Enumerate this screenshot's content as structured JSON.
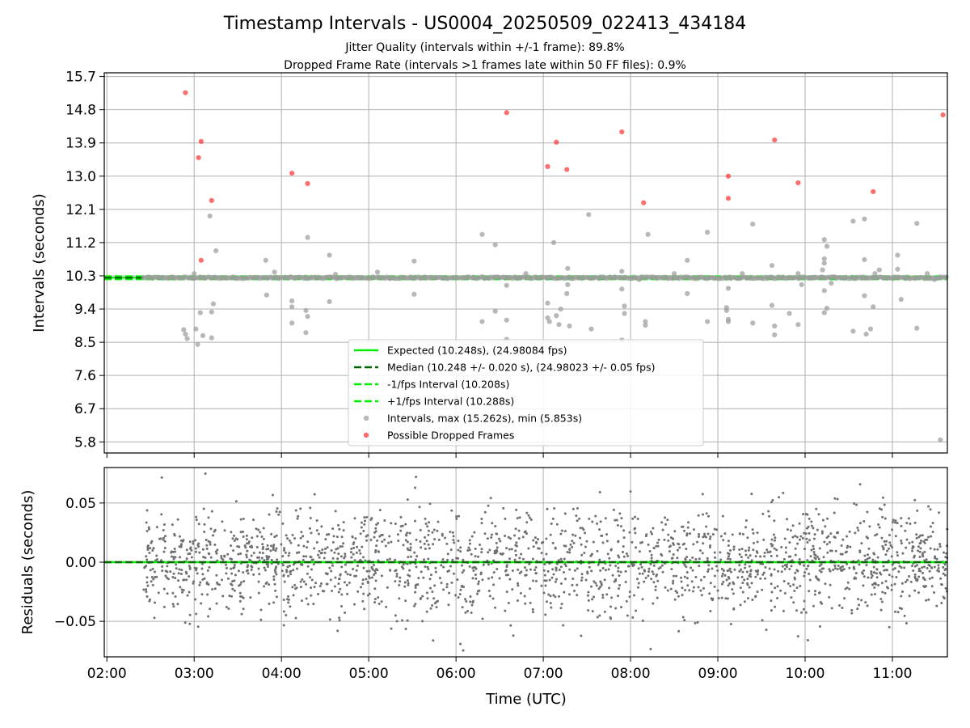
{
  "figure": {
    "title": "Timestamp Intervals - US0004_20250509_022413_434184",
    "subtitle_1": "Jitter Quality (intervals within +/-1 frame): 89.8%",
    "subtitle_2": "Dropped Frame Rate (intervals >1 frames late within 50 FF files): 0.9%"
  },
  "colors": {
    "expected": "#00ee00",
    "median": "#006400",
    "band": "#00ee00",
    "intervals": "#a0a0a0",
    "dropped": "#ff3030",
    "residuals": "#707070",
    "grid": "#b0b0b0"
  },
  "chart_data": [
    {
      "type": "scatter",
      "panel": "intervals",
      "xlabel": "",
      "ylabel": "Intervals (seconds)",
      "x_unit": "hours UTC",
      "xlim": [
        1.97,
        11.63
      ],
      "ylim": [
        5.5,
        15.8
      ],
      "yticks": [
        5.8,
        6.7,
        7.6,
        8.5,
        9.4,
        10.3,
        11.2,
        12.1,
        13.0,
        13.9,
        14.8,
        15.7
      ],
      "ytick_labels": [
        "5.8",
        "6.7",
        "7.6",
        "8.5",
        "9.4",
        "10.3",
        "11.2",
        "12.1",
        "13.0",
        "13.9",
        "14.8",
        "15.7"
      ],
      "xticks": [
        2,
        3,
        4,
        5,
        6,
        7,
        8,
        9,
        10,
        11
      ],
      "grid": true,
      "legend_position": "lower-center",
      "lines": {
        "expected": {
          "name": "Expected (10.248s), (24.98084 fps)",
          "y": 10.248,
          "x_range": [
            1.97,
            11.63
          ]
        },
        "median": {
          "name": "Median (10.248 +/- 0.020 s), (24.98023 +/- 0.05 fps)",
          "y": 10.248,
          "x_range": [
            1.97,
            11.63
          ]
        },
        "minus_band": {
          "name": "-1/fps Interval (10.208s)",
          "y": 10.208,
          "x_range": [
            1.97,
            11.63
          ]
        },
        "plus_band": {
          "name": "+1/fps Interval (10.288s)",
          "y": 10.288,
          "x_range": [
            1.97,
            11.63
          ]
        }
      },
      "normal_cluster": {
        "y": 10.248,
        "x_range": [
          2.42,
          11.63
        ]
      },
      "series": [
        {
          "name": "Intervals, max (15.262s), min (5.853s)",
          "points": [
            [
              2.88,
              8.84
            ],
            [
              2.9,
              8.72
            ],
            [
              2.92,
              8.6
            ],
            [
              3.02,
              8.86
            ],
            [
              3.04,
              8.44
            ],
            [
              3.07,
              9.3
            ],
            [
              3.1,
              8.68
            ],
            [
              3.2,
              8.62
            ],
            [
              3.2,
              9.32
            ],
            [
              3.22,
              9.54
            ],
            [
              3.25,
              10.98
            ],
            [
              3.18,
              11.92
            ],
            [
              3.0,
              10.36
            ],
            [
              3.82,
              10.72
            ],
            [
              3.83,
              9.78
            ],
            [
              3.92,
              10.4
            ],
            [
              4.12,
              9.62
            ],
            [
              4.12,
              9.02
            ],
            [
              4.12,
              9.46
            ],
            [
              4.28,
              8.76
            ],
            [
              4.28,
              9.36
            ],
            [
              4.3,
              9.2
            ],
            [
              4.3,
              11.34
            ],
            [
              4.55,
              10.86
            ],
            [
              4.55,
              9.6
            ],
            [
              4.1,
              10.26
            ],
            [
              4.62,
              10.34
            ],
            [
              4.88,
              10.26
            ],
            [
              5.1,
              10.4
            ],
            [
              5.52,
              10.7
            ],
            [
              5.52,
              9.8
            ],
            [
              6.3,
              11.42
            ],
            [
              6.45,
              11.14
            ],
            [
              6.3,
              9.06
            ],
            [
              6.45,
              9.34
            ],
            [
              6.58,
              9.1
            ],
            [
              6.58,
              8.58
            ],
            [
              6.58,
              10.04
            ],
            [
              6.8,
              10.36
            ],
            [
              7.05,
              9.56
            ],
            [
              7.05,
              9.16
            ],
            [
              7.07,
              9.06
            ],
            [
              7.12,
              11.2
            ],
            [
              7.15,
              9.22
            ],
            [
              7.18,
              8.98
            ],
            [
              7.2,
              9.4
            ],
            [
              7.27,
              9.82
            ],
            [
              7.3,
              8.94
            ],
            [
              7.28,
              10.5
            ],
            [
              7.28,
              10.06
            ],
            [
              7.52,
              11.96
            ],
            [
              7.55,
              8.86
            ],
            [
              7.9,
              8.56
            ],
            [
              7.93,
              9.48
            ],
            [
              7.93,
              9.28
            ],
            [
              7.9,
              10.42
            ],
            [
              7.9,
              9.94
            ],
            [
              8.17,
              9.06
            ],
            [
              8.17,
              8.96
            ],
            [
              8.2,
              11.42
            ],
            [
              8.1,
              10.2
            ],
            [
              8.5,
              10.36
            ],
            [
              8.65,
              10.72
            ],
            [
              8.65,
              9.82
            ],
            [
              8.88,
              11.48
            ],
            [
              8.88,
              9.06
            ],
            [
              9.1,
              9.44
            ],
            [
              9.1,
              9.36
            ],
            [
              9.12,
              9.12
            ],
            [
              9.12,
              9.06
            ],
            [
              9.12,
              9.96
            ],
            [
              9.28,
              10.36
            ],
            [
              9.4,
              11.7
            ],
            [
              9.4,
              9.02
            ],
            [
              9.62,
              10.58
            ],
            [
              9.62,
              9.5
            ],
            [
              9.65,
              8.94
            ],
            [
              9.65,
              8.7
            ],
            [
              9.82,
              9.28
            ],
            [
              9.92,
              8.98
            ],
            [
              9.92,
              10.36
            ],
            [
              9.96,
              10.06
            ],
            [
              10.1,
              10.26
            ],
            [
              10.22,
              11.28
            ],
            [
              10.22,
              10.76
            ],
            [
              10.22,
              10.64
            ],
            [
              10.25,
              11.1
            ],
            [
              10.25,
              9.42
            ],
            [
              10.22,
              9.3
            ],
            [
              10.22,
              9.9
            ],
            [
              10.2,
              10.46
            ],
            [
              10.3,
              10.1
            ],
            [
              10.55,
              11.78
            ],
            [
              10.55,
              8.8
            ],
            [
              10.68,
              11.84
            ],
            [
              10.68,
              10.74
            ],
            [
              10.68,
              9.76
            ],
            [
              10.7,
              8.72
            ],
            [
              10.75,
              8.86
            ],
            [
              10.78,
              9.46
            ],
            [
              10.8,
              10.36
            ],
            [
              10.85,
              10.46
            ],
            [
              11.06,
              10.86
            ],
            [
              11.06,
              10.48
            ],
            [
              11.1,
              9.66
            ],
            [
              11.28,
              11.72
            ],
            [
              11.28,
              8.88
            ],
            [
              11.55,
              5.853
            ],
            [
              11.4,
              10.36
            ],
            [
              11.48,
              10.2
            ]
          ]
        },
        {
          "name": "Possible Dropped Frames",
          "points": [
            [
              2.9,
              15.262
            ],
            [
              3.05,
              13.5
            ],
            [
              3.08,
              13.94
            ],
            [
              3.08,
              10.72
            ],
            [
              3.2,
              12.34
            ],
            [
              4.12,
              13.08
            ],
            [
              4.3,
              12.8
            ],
            [
              6.58,
              14.72
            ],
            [
              7.05,
              13.26
            ],
            [
              7.15,
              13.92
            ],
            [
              7.27,
              13.18
            ],
            [
              7.9,
              14.2
            ],
            [
              8.15,
              12.28
            ],
            [
              9.12,
              13.0
            ],
            [
              9.12,
              12.4
            ],
            [
              9.65,
              13.98
            ],
            [
              9.92,
              12.82
            ],
            [
              10.78,
              12.58
            ],
            [
              11.58,
              14.66
            ]
          ]
        }
      ]
    },
    {
      "type": "scatter",
      "panel": "residuals",
      "xlabel": "Time (UTC)",
      "ylabel": "Residuals (seconds)",
      "xlim": [
        1.97,
        11.63
      ],
      "ylim": [
        -0.08,
        0.08
      ],
      "yticks": [
        -0.05,
        0.0,
        0.05
      ],
      "ytick_labels": [
        "−0.05",
        "0.00",
        "0.05"
      ],
      "xticks": [
        2,
        3,
        4,
        5,
        6,
        7,
        8,
        9,
        10,
        11
      ],
      "xtick_labels": [
        "02:00",
        "03:00",
        "04:00",
        "05:00",
        "06:00",
        "07:00",
        "08:00",
        "09:00",
        "10:00",
        "11:00"
      ],
      "grid": true,
      "zero_line": 0.0,
      "series": [
        {
          "name": "Residuals",
          "x_range": [
            2.42,
            11.63
          ],
          "n_points": 2100,
          "approx_std": 0.022,
          "clip": [
            -0.078,
            0.078
          ]
        }
      ]
    }
  ]
}
